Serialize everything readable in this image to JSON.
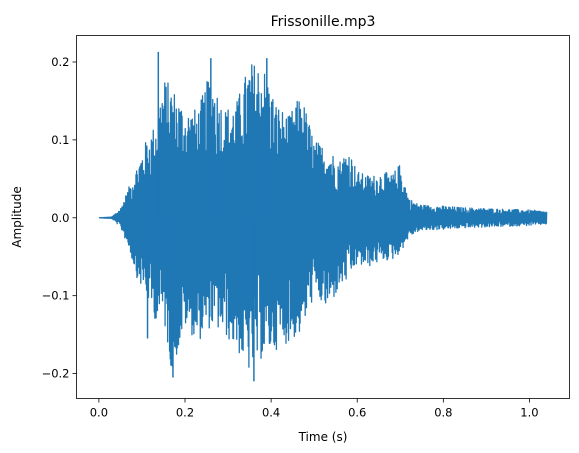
{
  "chart_data": {
    "type": "line",
    "title": "Frissonille.mp3",
    "xlabel": "Time (s)",
    "ylabel": "Amplitude",
    "xlim": [
      -0.052,
      1.093
    ],
    "ylim": [
      -0.232,
      0.234
    ],
    "x_ticks": [
      {
        "value": 0.0,
        "label": "0.0"
      },
      {
        "value": 0.2,
        "label": "0.2"
      },
      {
        "value": 0.4,
        "label": "0.4"
      },
      {
        "value": 0.6,
        "label": "0.6"
      },
      {
        "value": 0.8,
        "label": "0.8"
      },
      {
        "value": 1.0,
        "label": "1.0"
      }
    ],
    "y_ticks": [
      {
        "value": -0.2,
        "label": "−0.2"
      },
      {
        "value": -0.1,
        "label": "−0.1"
      },
      {
        "value": 0.0,
        "label": "0.0"
      },
      {
        "value": 0.1,
        "label": "0.1"
      },
      {
        "value": 0.2,
        "label": "0.2"
      }
    ],
    "grid": false,
    "series": [
      {
        "color": "#1f77b4",
        "duration_s": 1.04,
        "envelope": {
          "t": [
            0.0,
            0.03,
            0.05,
            0.07,
            0.09,
            0.11,
            0.13,
            0.15,
            0.17,
            0.2,
            0.23,
            0.26,
            0.29,
            0.32,
            0.35,
            0.38,
            0.41,
            0.44,
            0.47,
            0.5,
            0.53,
            0.56,
            0.58,
            0.6,
            0.62,
            0.64,
            0.66,
            0.68,
            0.7,
            0.72,
            0.74,
            0.76,
            0.8,
            0.85,
            0.9,
            0.95,
            1.0,
            1.04
          ],
          "max": [
            0.0,
            0.001,
            0.012,
            0.04,
            0.07,
            0.1,
            0.12,
            0.18,
            0.17,
            0.14,
            0.14,
            0.19,
            0.14,
            0.15,
            0.2,
            0.2,
            0.15,
            0.13,
            0.16,
            0.1,
            0.09,
            0.075,
            0.09,
            0.06,
            0.055,
            0.055,
            0.06,
            0.055,
            0.07,
            0.025,
            0.018,
            0.016,
            0.015,
            0.013,
            0.012,
            0.011,
            0.01,
            0.008
          ],
          "min": [
            0.0,
            -0.001,
            -0.012,
            -0.04,
            -0.08,
            -0.1,
            -0.13,
            -0.13,
            -0.2,
            -0.14,
            -0.16,
            -0.14,
            -0.15,
            -0.17,
            -0.2,
            -0.18,
            -0.17,
            -0.16,
            -0.15,
            -0.1,
            -0.12,
            -0.09,
            -0.08,
            -0.06,
            -0.065,
            -0.06,
            -0.055,
            -0.055,
            -0.045,
            -0.025,
            -0.018,
            -0.016,
            -0.015,
            -0.013,
            -0.012,
            -0.011,
            -0.01,
            -0.008
          ]
        },
        "peaks": [
          {
            "x": 0.138,
            "y": 0.213
          },
          {
            "x": 0.172,
            "y": -0.205
          },
          {
            "x": 0.26,
            "y": 0.205
          },
          {
            "x": 0.36,
            "y": -0.21
          },
          {
            "x": 0.39,
            "y": 0.205
          },
          {
            "x": 0.113,
            "y": -0.155
          }
        ]
      }
    ]
  }
}
